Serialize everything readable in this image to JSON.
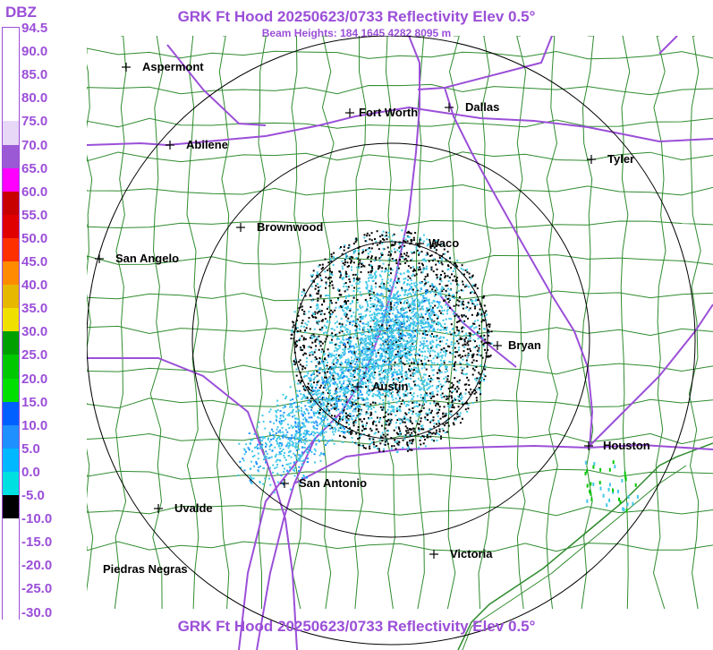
{
  "header": {
    "title": "GRK Ft Hood 20250623/0733 Reflectivity Elev 0.5°",
    "subtitle": "Beam Heights: 184 1645 4282 8095 m",
    "title_bottom": "GRK Ft Hood 20250623/0733 Reflectivity Elev 0.5°"
  },
  "legend": {
    "unit": "DBZ",
    "labels": [
      "94.5",
      "90.0",
      "85.0",
      "80.0",
      "75.0",
      "70.0",
      "65.0",
      "60.0",
      "55.0",
      "50.0",
      "45.0",
      "40.0",
      "35.0",
      "30.0",
      "25.0",
      "20.0",
      "15.0",
      "10.0",
      "5.0",
      "0.0",
      "-5.0",
      "-10.0",
      "-15.0",
      "-20.0",
      "-25.0",
      "-30.0"
    ],
    "colors": [
      "#ffffff",
      "#ffffff",
      "#ffffff",
      "#ffffff",
      "#e8d8f8",
      "#9b59d6",
      "#ff00ff",
      "#c80000",
      "#e00000",
      "#ff3000",
      "#ff8c00",
      "#e6b800",
      "#f0e000",
      "#00a000",
      "#00c800",
      "#00e000",
      "#0060ff",
      "#1e90ff",
      "#00b8ff",
      "#00e0e0",
      "#000000",
      "#ffffff",
      "#ffffff",
      "#ffffff",
      "#ffffff",
      "#ffffff"
    ]
  },
  "map": {
    "cities": [
      {
        "name": "Aspermont"
      },
      {
        "name": "Fort Worth"
      },
      {
        "name": "Dallas"
      },
      {
        "name": "Abilene"
      },
      {
        "name": "Tyler"
      },
      {
        "name": "Brownwood"
      },
      {
        "name": "Waco"
      },
      {
        "name": "San Angelo"
      },
      {
        "name": "Bryan"
      },
      {
        "name": "Austin"
      },
      {
        "name": "Houston"
      },
      {
        "name": "San Antonio"
      },
      {
        "name": "Uvalde"
      },
      {
        "name": "Victoria"
      },
      {
        "name": "Piedras Negras"
      }
    ],
    "colors": {
      "county_lines": "#2e8b2e",
      "roads": "#9b4fd8",
      "range_rings": "#000000",
      "echo_light": "#40c8e8",
      "echo_mid": "#1e90ff",
      "echo_dark": "#000000"
    }
  }
}
